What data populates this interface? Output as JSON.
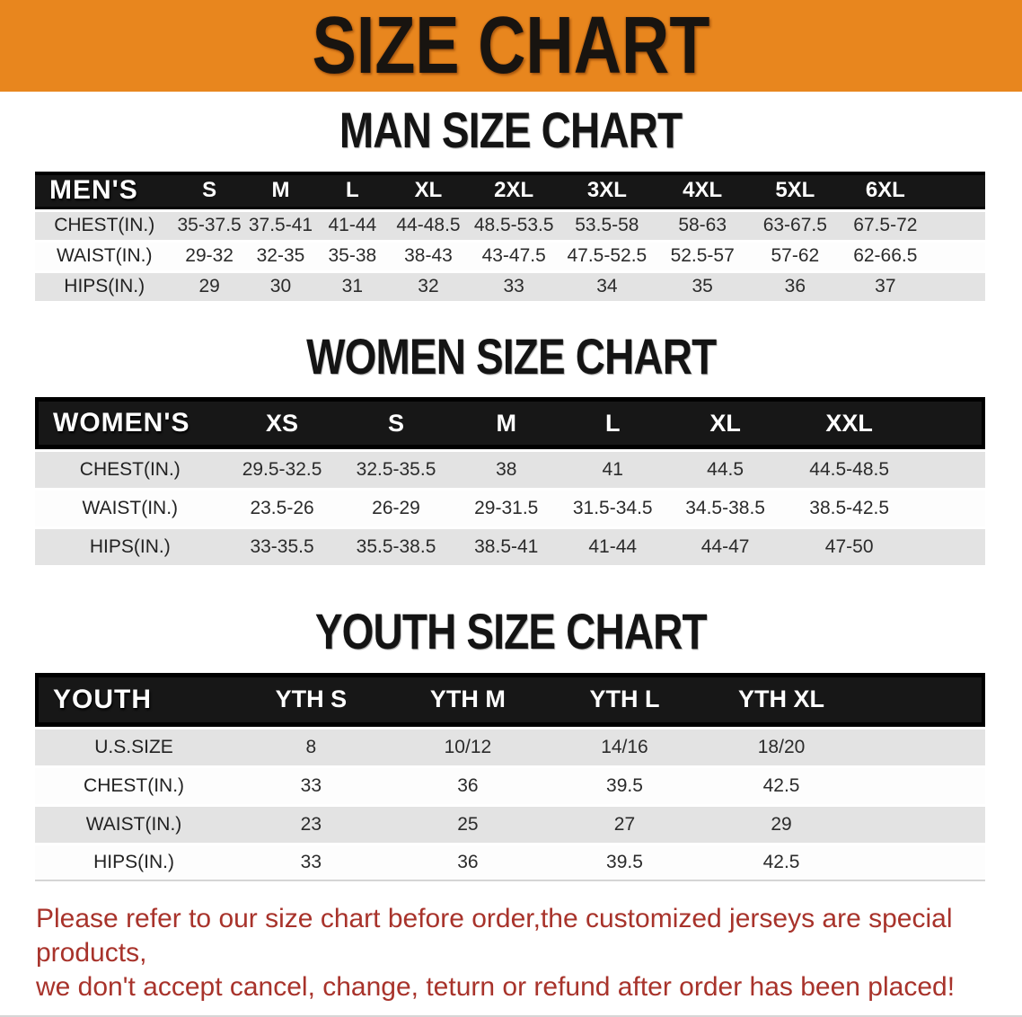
{
  "banner": {
    "title": "SIZE CHART",
    "bg_color": "#E8861E",
    "text_color": "#181410"
  },
  "sections": {
    "men": {
      "heading": "MAN SIZE CHART",
      "table": {
        "corner": "MEN'S",
        "columns": [
          "S",
          "M",
          "L",
          "XL",
          "2XL",
          "3XL",
          "4XL",
          "5XL",
          "6XL"
        ],
        "rows": [
          {
            "label": "CHEST(IN.)",
            "values": [
              "35-37.5",
              "37.5-41",
              "41-44",
              "44-48.5",
              "48.5-53.5",
              "53.5-58",
              "58-63",
              "63-67.5",
              "67.5-72"
            ]
          },
          {
            "label": "WAIST(IN.)",
            "values": [
              "29-32",
              "32-35",
              "35-38",
              "38-43",
              "43-47.5",
              "47.5-52.5",
              "52.5-57",
              "57-62",
              "62-66.5"
            ]
          },
          {
            "label": "HIPS(IN.)",
            "values": [
              "29",
              "30",
              "31",
              "32",
              "33",
              "34",
              "35",
              "36",
              "37"
            ]
          }
        ]
      }
    },
    "women": {
      "heading": "WOMEN SIZE CHART",
      "table": {
        "corner": "WOMEN'S",
        "columns": [
          "XS",
          "S",
          "M",
          "L",
          "XL",
          "XXL"
        ],
        "rows": [
          {
            "label": "CHEST(IN.)",
            "values": [
              "29.5-32.5",
              "32.5-35.5",
              "38",
              "41",
              "44.5",
              "44.5-48.5"
            ]
          },
          {
            "label": "WAIST(IN.)",
            "values": [
              "23.5-26",
              "26-29",
              "29-31.5",
              "31.5-34.5",
              "34.5-38.5",
              "38.5-42.5"
            ]
          },
          {
            "label": "HIPS(IN.)",
            "values": [
              "33-35.5",
              "35.5-38.5",
              "38.5-41",
              "41-44",
              "44-47",
              "47-50"
            ]
          }
        ]
      }
    },
    "youth": {
      "heading": "YOUTH SIZE CHART",
      "table": {
        "corner": "YOUTH",
        "columns": [
          "YTH S",
          "YTH M",
          "YTH L",
          "YTH XL"
        ],
        "rows": [
          {
            "label": "U.S.SIZE",
            "values": [
              "8",
              "10/12",
              "14/16",
              "18/20"
            ]
          },
          {
            "label": "CHEST(IN.)",
            "values": [
              "33",
              "36",
              "39.5",
              "42.5"
            ]
          },
          {
            "label": "WAIST(IN.)",
            "values": [
              "23",
              "25",
              "27",
              "29"
            ]
          },
          {
            "label": "HIPS(IN.)",
            "values": [
              "33",
              "36",
              "39.5",
              "42.5"
            ]
          }
        ]
      }
    }
  },
  "footer": {
    "line1": "Please refer to our size chart before order,the customized jerseys are special products,",
    "line2": "we don't accept cancel, change, teturn or refund after order has been placed!",
    "text_color": "#A8332B"
  },
  "palette": {
    "header_black": "#171717",
    "row_gray": "#E3E3E3",
    "row_white": "#FDFDFD"
  }
}
